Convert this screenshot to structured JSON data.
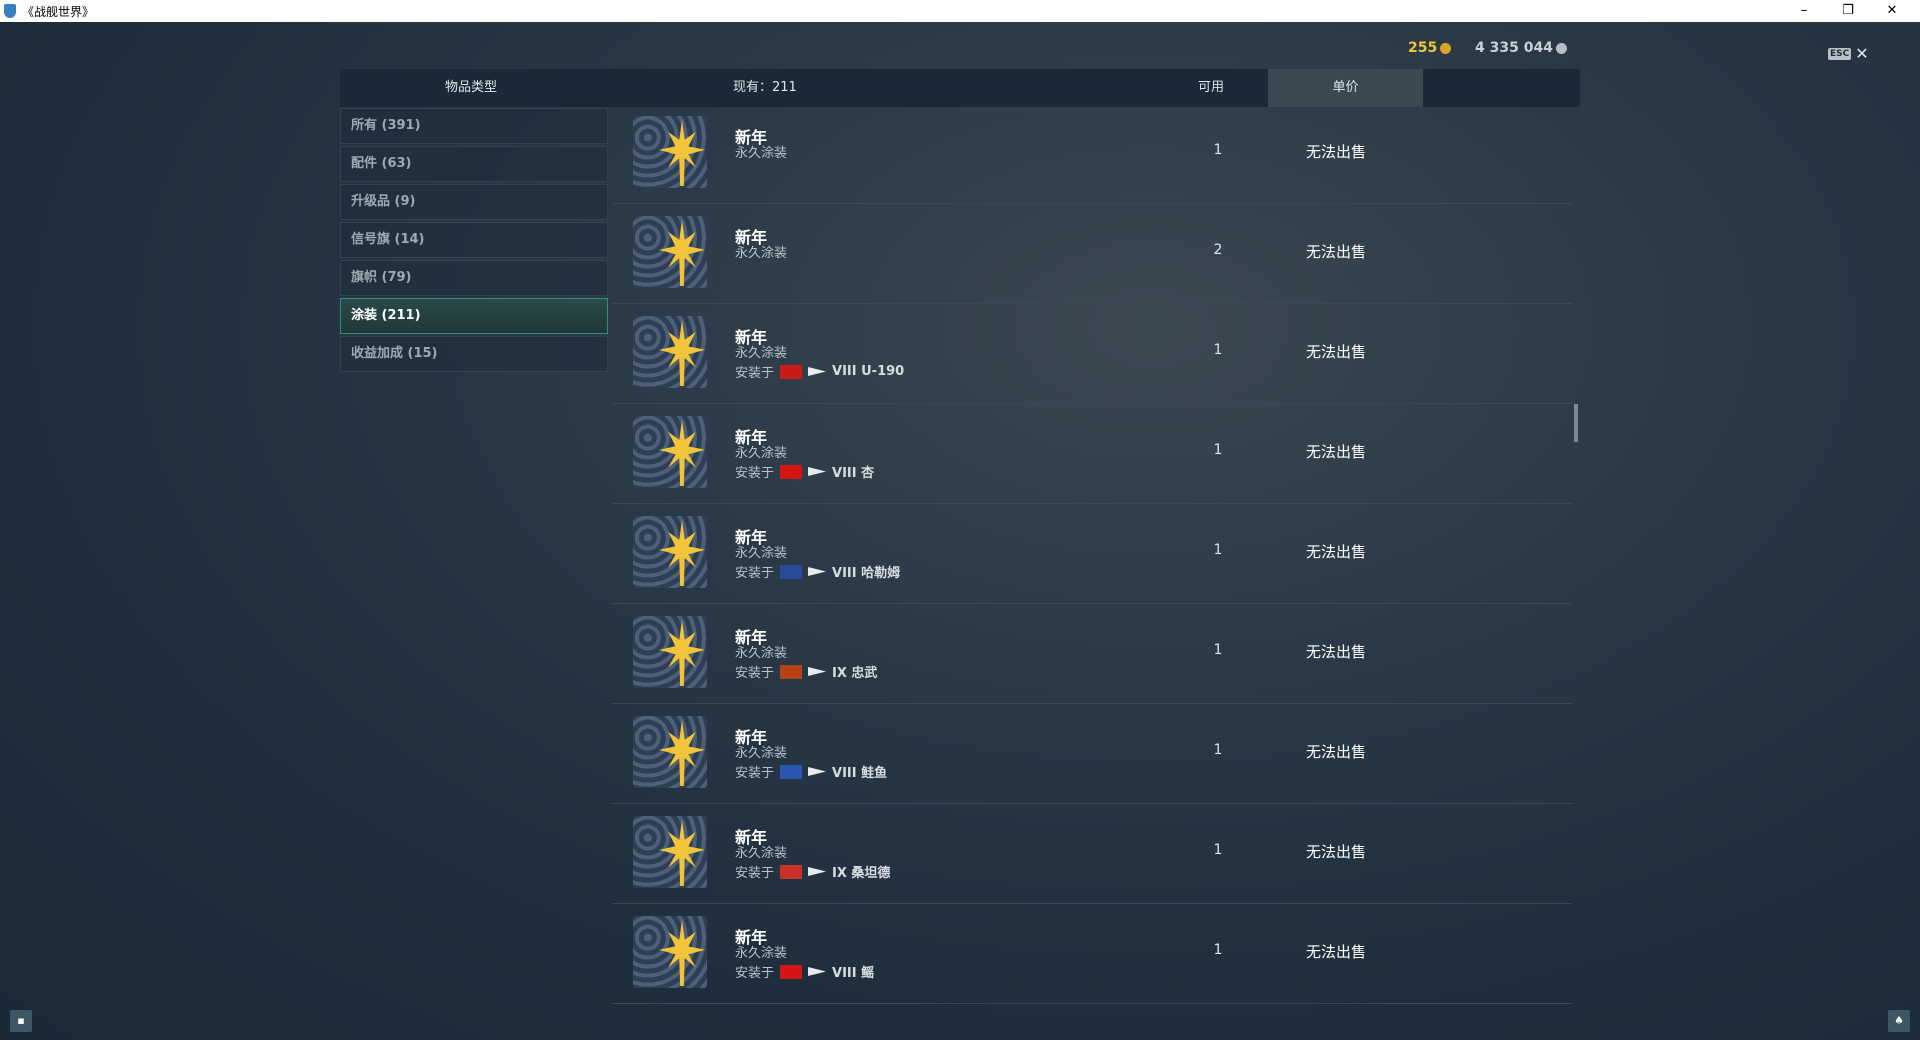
{
  "window": {
    "title": "《战舰世界》",
    "minimize": "–",
    "restore": "❐",
    "close": "✕"
  },
  "currency": {
    "gold": "255",
    "credits": "4 335 044",
    "gold_color": "#f2c43a",
    "credit_color": "#c9d1d6"
  },
  "esc": {
    "key": "ESC",
    "close": "✕"
  },
  "header": {
    "category": "物品类型",
    "owned": "现有：211",
    "available": "可用",
    "price": "单价"
  },
  "categories": [
    {
      "label": "所有 (391)"
    },
    {
      "label": "配件 (63)"
    },
    {
      "label": "升级品 (9)"
    },
    {
      "label": "信号旗 (14)"
    },
    {
      "label": "旗帜 (79)"
    },
    {
      "label": "涂装 (211)",
      "active": true
    },
    {
      "label": "收益加成 (15)"
    }
  ],
  "items": [
    {
      "name": "新年",
      "type": "永久涂装",
      "installed_label": "",
      "ship": "",
      "count": "1",
      "price": "无法出售"
    },
    {
      "name": "新年",
      "type": "永久涂装",
      "installed_label": "",
      "ship": "",
      "count": "2",
      "price": "无法出售"
    },
    {
      "name": "新年",
      "type": "永久涂装",
      "installed_label": "安装于",
      "flag": "#cc1a1a",
      "ship": "VIII U-190",
      "count": "1",
      "price": "无法出售"
    },
    {
      "name": "新年",
      "type": "永久涂装",
      "installed_label": "安装于",
      "flag": "#d41616",
      "ship": "VIII 杏",
      "count": "1",
      "price": "无法出售"
    },
    {
      "name": "新年",
      "type": "永久涂装",
      "installed_label": "安装于",
      "flag": "#2a4a9a",
      "ship": "VIII 哈勒姆",
      "count": "1",
      "price": "无法出售"
    },
    {
      "name": "新年",
      "type": "永久涂装",
      "installed_label": "安装于",
      "flag": "#b8401a",
      "ship": "IX 忠武",
      "count": "1",
      "price": "无法出售"
    },
    {
      "name": "新年",
      "type": "永久涂装",
      "installed_label": "安装于",
      "flag": "#2b55b0",
      "ship": "VIII 鲑鱼",
      "count": "1",
      "price": "无法出售"
    },
    {
      "name": "新年",
      "type": "永久涂装",
      "installed_label": "安装于",
      "flag": "#c8302a",
      "ship": "IX 桑坦德",
      "count": "1",
      "price": "无法出售"
    },
    {
      "name": "新年",
      "type": "永久涂装",
      "installed_label": "安装于",
      "flag": "#d41616",
      "ship": "VIII 鳐",
      "count": "1",
      "price": "无法出售"
    }
  ],
  "footer": {
    "chat_icon": "chat-icon",
    "notification_icon": "bell-icon"
  }
}
